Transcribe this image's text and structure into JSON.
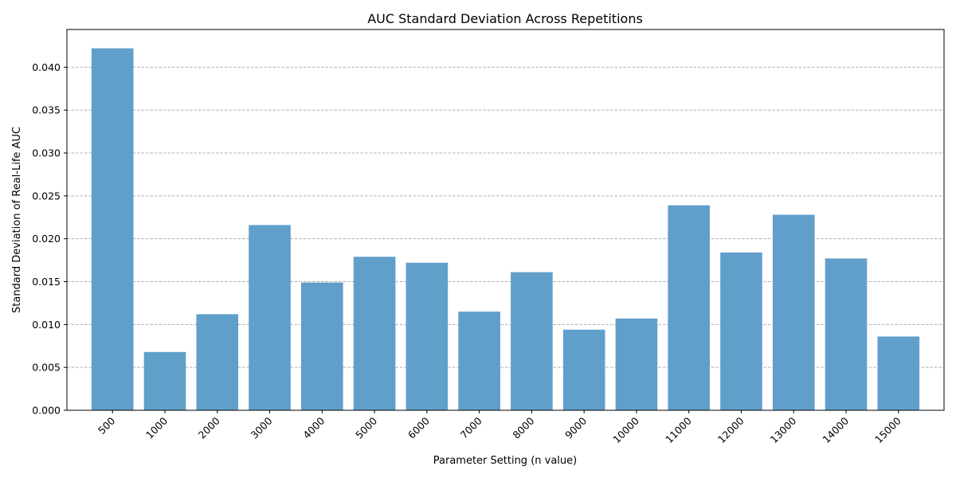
{
  "chart_data": {
    "type": "bar",
    "title": "AUC Standard Deviation Across Repetitions",
    "xlabel": "Parameter Setting (n value)",
    "ylabel": "Standard Deviation of Real-Life AUC",
    "categories": [
      "500",
      "1000",
      "2000",
      "3000",
      "4000",
      "5000",
      "6000",
      "7000",
      "8000",
      "9000",
      "10000",
      "11000",
      "12000",
      "13000",
      "14000",
      "15000"
    ],
    "values": [
      0.0422,
      0.0068,
      0.0112,
      0.0216,
      0.0149,
      0.0179,
      0.0172,
      0.0115,
      0.0161,
      0.0094,
      0.0107,
      0.0239,
      0.0184,
      0.0228,
      0.0177,
      0.0086
    ],
    "ylim": [
      0,
      0.0444
    ],
    "yticks": [
      "0.000",
      "0.005",
      "0.010",
      "0.015",
      "0.020",
      "0.025",
      "0.030",
      "0.035",
      "0.040"
    ],
    "grid": "horizontal-dashed",
    "bar_color": "#619fcb",
    "grid_color": "#b0b0b0",
    "axis_color": "#000000"
  }
}
